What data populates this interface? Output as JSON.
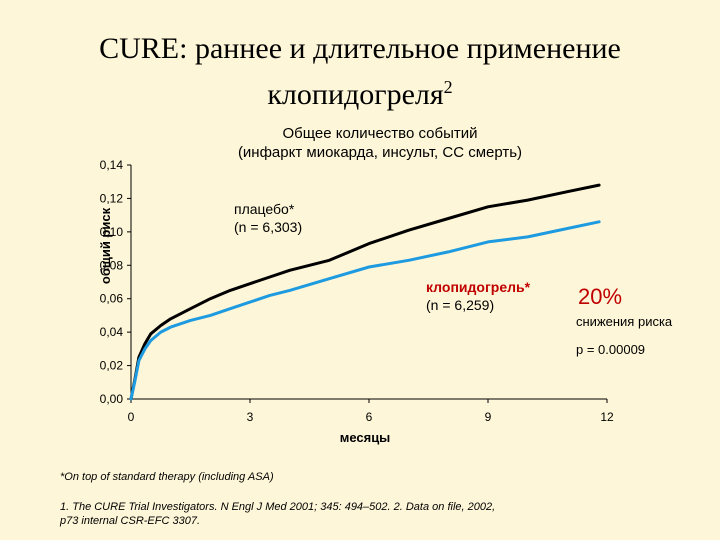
{
  "slide": {
    "title_line1": "CURE: раннее и длительное применение",
    "title_line2": "клопидогреля",
    "title_sup": "2"
  },
  "chart_data": {
    "type": "line",
    "title_line1": "Общее количество событий",
    "title_line2": "(инфаркт миокарда, инсульт, СС смерть)",
    "xlabel": "месяцы",
    "ylabel": "общий риск",
    "xlim": [
      0,
      12
    ],
    "ylim": [
      0,
      0.14
    ],
    "x_ticks": [
      "0",
      "3",
      "6",
      "9",
      "12"
    ],
    "y_ticks": [
      "0,00",
      "0,02",
      "0,04",
      "0,06",
      "0,08",
      "0,10",
      "0,12",
      "0,14"
    ],
    "grid": false,
    "series": [
      {
        "name": "плацебо*",
        "n_label": "(n = 6,303)",
        "color": "#000000",
        "x": [
          0,
          0.1,
          0.2,
          0.35,
          0.5,
          0.75,
          1,
          1.5,
          2,
          2.5,
          3,
          3.5,
          4,
          5,
          6,
          7,
          8,
          9,
          10,
          11,
          11.8
        ],
        "y": [
          0,
          0.012,
          0.025,
          0.033,
          0.039,
          0.044,
          0.048,
          0.054,
          0.06,
          0.065,
          0.069,
          0.073,
          0.077,
          0.083,
          0.093,
          0.101,
          0.108,
          0.115,
          0.119,
          0.124,
          0.128
        ]
      },
      {
        "name": "клопидогрель*",
        "n_label": "(n = 6,259)",
        "color": "#1e9be0",
        "x": [
          0,
          0.1,
          0.2,
          0.35,
          0.5,
          0.75,
          1,
          1.5,
          2,
          2.5,
          3,
          3.5,
          4,
          5,
          6,
          7,
          8,
          9,
          10,
          11,
          11.8
        ],
        "y": [
          0,
          0.011,
          0.023,
          0.03,
          0.035,
          0.04,
          0.043,
          0.047,
          0.05,
          0.054,
          0.058,
          0.062,
          0.065,
          0.072,
          0.079,
          0.083,
          0.088,
          0.094,
          0.097,
          0.102,
          0.106
        ]
      }
    ]
  },
  "annotations": {
    "reduction_value": "20%",
    "reduction_label": "снижения риска",
    "p_value": "p = 0.00009"
  },
  "footnotes": {
    "line1": "*On top of standard therapy (including ASA)",
    "line2": "1. The CURE Trial Investigators. N Engl J Med 2001; 345: 494–502. 2. Data on file, 2002,",
    "line3": "p73 internal CSR-EFC 3307."
  }
}
